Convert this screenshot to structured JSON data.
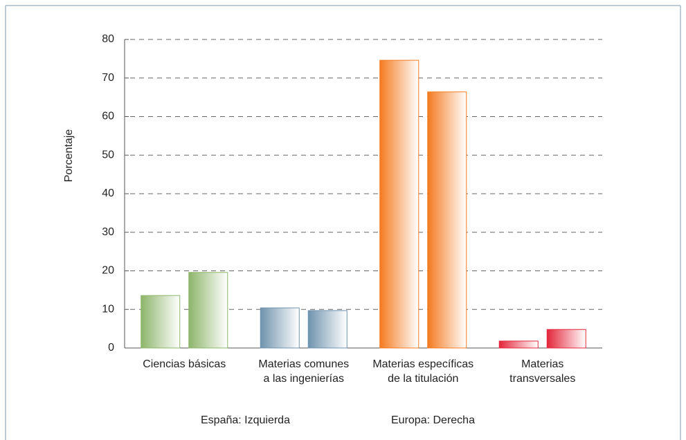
{
  "chart_data": {
    "type": "bar",
    "y_label": "Porcentaje",
    "categories": [
      [
        "Ciencias básicas"
      ],
      [
        "Materias comunes",
        "a las ingenierías"
      ],
      [
        "Materias específicas",
        "de la titulación"
      ],
      [
        "Materias",
        "transversales"
      ]
    ],
    "category_colors": [
      "#8db56a",
      "#6f93ad",
      "#f47a20",
      "#e3263a"
    ],
    "series": [
      {
        "name": "España: Izquierda",
        "values": [
          13.6,
          10.4,
          74.6,
          1.8
        ]
      },
      {
        "name": "Europa: Derecha",
        "values": [
          19.6,
          9.7,
          66.4,
          4.8
        ]
      }
    ],
    "ylim": [
      0,
      80
    ],
    "yticks": [
      0,
      10,
      20,
      30,
      40,
      50,
      60,
      70,
      80
    ],
    "grid": true
  }
}
